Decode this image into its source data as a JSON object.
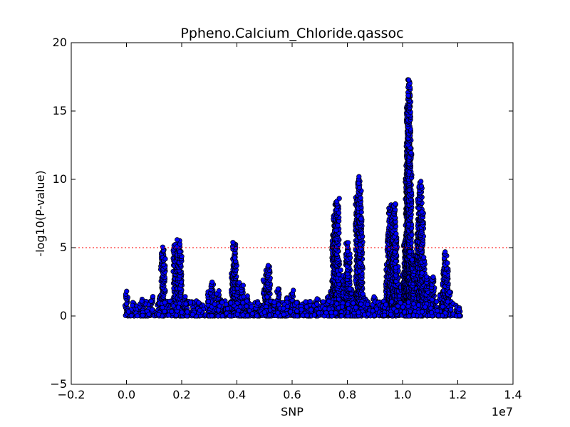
{
  "chart_data": {
    "type": "scatter",
    "title": "Ppheno.Calcium_Chloride.qassoc",
    "xlabel": "SNP",
    "ylabel": "-log10(P-value)",
    "x_offset_label": "1e7",
    "xlim": [
      -0.2,
      1.4
    ],
    "ylim": [
      -5,
      20
    ],
    "x_ticks": [
      "−0.2",
      "0.0",
      "0.2",
      "0.4",
      "0.6",
      "0.8",
      "1.0",
      "1.2",
      "1.4"
    ],
    "y_ticks": [
      "−5",
      "0",
      "5",
      "10",
      "15",
      "20"
    ],
    "threshold": 5,
    "threshold_color": "#ff0000",
    "point_fill": "#0000ff",
    "point_edge": "#000000",
    "grid": false,
    "peaks": [
      {
        "x": 0.0,
        "y": 1.7
      },
      {
        "x": 0.03,
        "y": 0.9
      },
      {
        "x": 0.06,
        "y": 1.1
      },
      {
        "x": 0.09,
        "y": 1.5
      },
      {
        "x": 0.12,
        "y": 1.4
      },
      {
        "x": 0.15,
        "y": 1.0
      },
      {
        "x": 0.18,
        "y": 2.2
      },
      {
        "x": 0.21,
        "y": 1.4
      },
      {
        "x": 0.25,
        "y": 1.0
      },
      {
        "x": 0.3,
        "y": 1.7
      },
      {
        "x": 0.34,
        "y": 1.2
      },
      {
        "x": 0.38,
        "y": 1.0
      },
      {
        "x": 0.44,
        "y": 1.5
      },
      {
        "x": 0.48,
        "y": 0.8
      },
      {
        "x": 0.53,
        "y": 1.0
      },
      {
        "x": 0.58,
        "y": 1.3
      },
      {
        "x": 0.64,
        "y": 1.0
      },
      {
        "x": 0.69,
        "y": 1.2
      },
      {
        "x": 0.73,
        "y": 1.4
      },
      {
        "x": 0.78,
        "y": 1.3
      },
      {
        "x": 0.82,
        "y": 1.1
      },
      {
        "x": 0.87,
        "y": 1.2
      },
      {
        "x": 0.9,
        "y": 1.5
      },
      {
        "x": 0.93,
        "y": 0.9
      },
      {
        "x": 0.97,
        "y": 2.1
      },
      {
        "x": 1.05,
        "y": 0.8
      },
      {
        "x": 1.1,
        "y": 1.6
      },
      {
        "x": 1.14,
        "y": 1.7
      },
      {
        "x": 1.17,
        "y": 1.0
      },
      {
        "x": 1.2,
        "y": 0.4
      },
      {
        "x": 0.05,
        "y": 0.5
      },
      {
        "x": 0.27,
        "y": 0.7
      },
      {
        "x": 0.36,
        "y": 0.5
      },
      {
        "x": 0.56,
        "y": 0.4
      },
      {
        "x": 0.67,
        "y": 0.8
      },
      {
        "x": 0.76,
        "y": 0.6
      },
      {
        "x": 0.13,
        "y": 5.0
      },
      {
        "x": 0.135,
        "y": 4.3
      },
      {
        "x": 0.175,
        "y": 5.3
      },
      {
        "x": 0.18,
        "y": 4.5
      },
      {
        "x": 0.188,
        "y": 5.5
      },
      {
        "x": 0.195,
        "y": 4.8
      },
      {
        "x": 0.31,
        "y": 2.4
      },
      {
        "x": 0.33,
        "y": 1.8
      },
      {
        "x": 0.385,
        "y": 3.2
      },
      {
        "x": 0.39,
        "y": 5.4
      },
      {
        "x": 0.395,
        "y": 4.2
      },
      {
        "x": 0.405,
        "y": 2.5
      },
      {
        "x": 0.42,
        "y": 2.2
      },
      {
        "x": 0.5,
        "y": 2.6
      },
      {
        "x": 0.51,
        "y": 3.4
      },
      {
        "x": 0.515,
        "y": 3.8
      },
      {
        "x": 0.55,
        "y": 2.0
      },
      {
        "x": 0.6,
        "y": 1.8
      },
      {
        "x": 0.745,
        "y": 2.0
      },
      {
        "x": 0.75,
        "y": 6.0
      },
      {
        "x": 0.755,
        "y": 7.5
      },
      {
        "x": 0.76,
        "y": 8.3
      },
      {
        "x": 0.765,
        "y": 8.5
      },
      {
        "x": 0.77,
        "y": 3.4
      },
      {
        "x": 0.79,
        "y": 3.0
      },
      {
        "x": 0.8,
        "y": 5.4
      },
      {
        "x": 0.805,
        "y": 4.6
      },
      {
        "x": 0.815,
        "y": 2.0
      },
      {
        "x": 0.835,
        "y": 8.8
      },
      {
        "x": 0.84,
        "y": 10.2
      },
      {
        "x": 0.845,
        "y": 9.6
      },
      {
        "x": 0.85,
        "y": 7.2
      },
      {
        "x": 0.855,
        "y": 1.6
      },
      {
        "x": 0.945,
        "y": 3.8
      },
      {
        "x": 0.95,
        "y": 6.2
      },
      {
        "x": 0.955,
        "y": 8.2
      },
      {
        "x": 0.96,
        "y": 4.6
      },
      {
        "x": 0.965,
        "y": 7.0
      },
      {
        "x": 0.97,
        "y": 8.3
      },
      {
        "x": 0.975,
        "y": 6.0
      },
      {
        "x": 0.98,
        "y": 3.6
      },
      {
        "x": 0.99,
        "y": 2.2
      },
      {
        "x": 1.005,
        "y": 3.2
      },
      {
        "x": 1.01,
        "y": 5.2
      },
      {
        "x": 1.013,
        "y": 6.0
      },
      {
        "x": 1.016,
        "y": 10.5
      },
      {
        "x": 1.018,
        "y": 13.0
      },
      {
        "x": 1.02,
        "y": 15.5
      },
      {
        "x": 1.022,
        "y": 17.4
      },
      {
        "x": 1.025,
        "y": 16.2
      },
      {
        "x": 1.028,
        "y": 12.0
      },
      {
        "x": 1.032,
        "y": 4.8
      },
      {
        "x": 1.04,
        "y": 4.2
      },
      {
        "x": 1.055,
        "y": 6.4
      },
      {
        "x": 1.06,
        "y": 8.6
      },
      {
        "x": 1.065,
        "y": 9.8
      },
      {
        "x": 1.07,
        "y": 7.6
      },
      {
        "x": 1.075,
        "y": 4.2
      },
      {
        "x": 1.09,
        "y": 2.8
      },
      {
        "x": 1.11,
        "y": 2.9
      },
      {
        "x": 1.15,
        "y": 3.5
      },
      {
        "x": 1.155,
        "y": 4.6
      },
      {
        "x": 1.16,
        "y": 3.8
      },
      {
        "x": 1.17,
        "y": 1.8
      }
    ]
  }
}
